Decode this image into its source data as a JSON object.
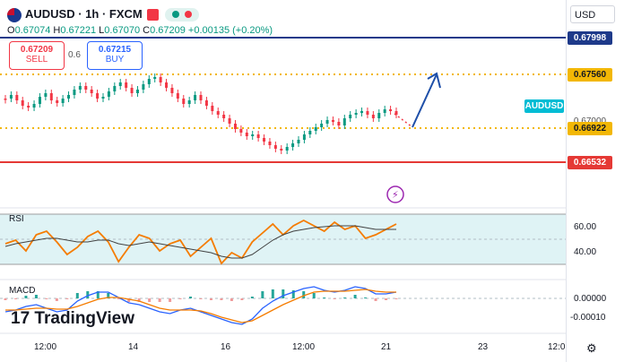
{
  "header": {
    "symbol": "AUDUSD · 1h · FXCM",
    "ohlc": {
      "o_label": "O",
      "o": "0.67074",
      "h_label": "H",
      "h": "0.67221",
      "l_label": "L",
      "l": "0.67070",
      "c_label": "C",
      "c": "0.67209",
      "chg": "+0.00135 (+0.20%)"
    },
    "sell_price": "0.67209",
    "sell_label": "SELL",
    "spread": "0.6",
    "buy_price": "0.67215",
    "buy_label": "BUY"
  },
  "axis": {
    "currency": "USD",
    "levels": {
      "top": "0.67998",
      "target": "0.67560",
      "current": "0.66922",
      "support": "0.66532"
    },
    "symbol_tag": "AUDUSD",
    "partial_tick": "0.67000",
    "rsi_ticks": [
      "60.00",
      "40.00"
    ],
    "macd_ticks": [
      "0.00000",
      "-0.00010"
    ],
    "time_ticks": [
      "12:00",
      "14",
      "16",
      "12:00",
      "21",
      "23",
      "12:0"
    ]
  },
  "indicators": {
    "rsi": "RSI",
    "macd": "MACD"
  },
  "branding": {
    "logo": "TradingView"
  },
  "colors": {
    "up": "#089981",
    "down": "#f23645",
    "target_line": "#f2b705",
    "resistance": "#1e3a8a",
    "support": "#e53935",
    "rsi_line": "#f57c00",
    "arrow": "#1e4fa8"
  }
}
